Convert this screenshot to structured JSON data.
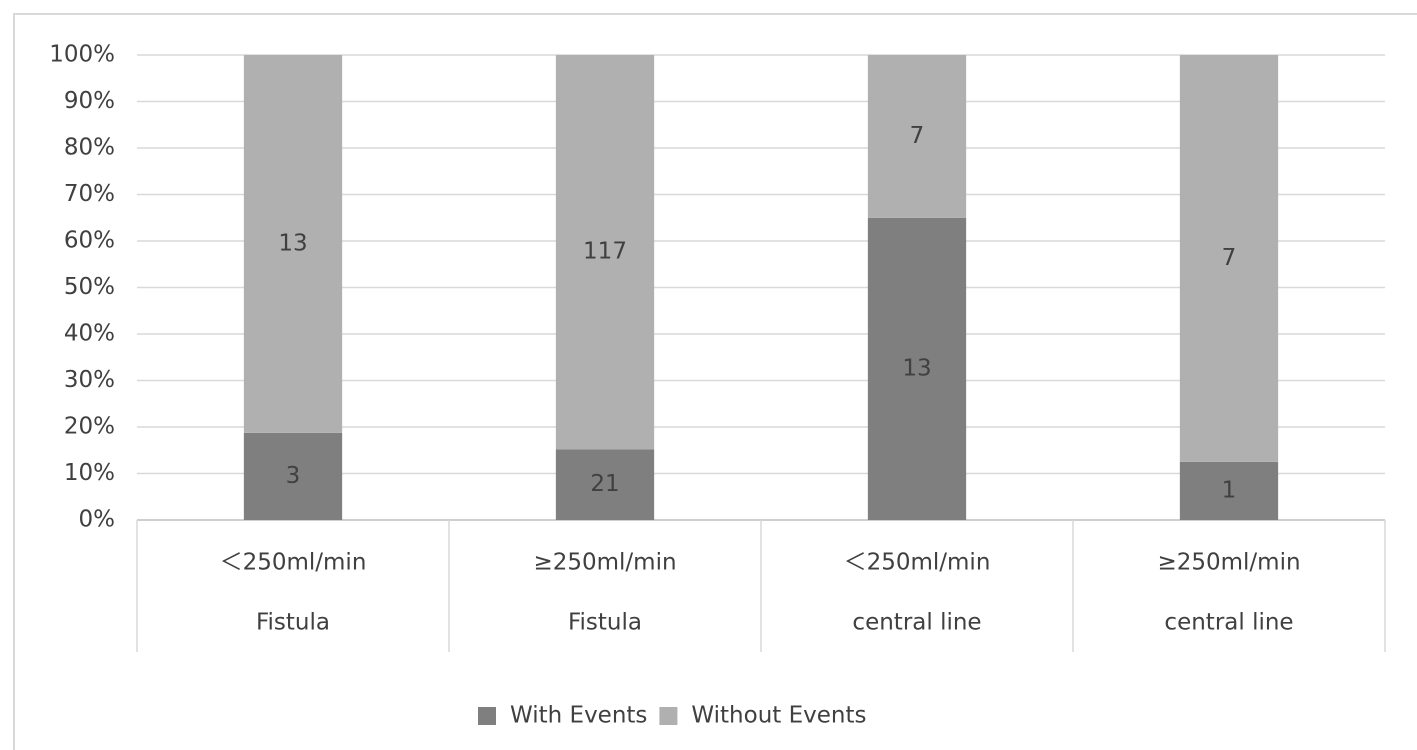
{
  "chart_data": {
    "type": "bar",
    "stacking": "percent",
    "categories": [
      "＜250ml/min",
      "≥250ml/min",
      "＜250ml/min",
      "≥250ml/min"
    ],
    "category_groups": [
      "Fistula",
      "Fistula",
      "central line",
      "central line"
    ],
    "series": [
      {
        "name": "With Events",
        "color": "#7f7f7f",
        "values": [
          3,
          21,
          13,
          1
        ]
      },
      {
        "name": "Without Events",
        "color": "#b0b0b0",
        "values": [
          13,
          117,
          7,
          7
        ]
      }
    ],
    "ylim": [
      0,
      100
    ],
    "yticks": [
      {
        "value": 0,
        "label": "0%"
      },
      {
        "value": 10,
        "label": "10%"
      },
      {
        "value": 20,
        "label": "20%"
      },
      {
        "value": 30,
        "label": "30%"
      },
      {
        "value": 40,
        "label": "40%"
      },
      {
        "value": 50,
        "label": "50%"
      },
      {
        "value": 60,
        "label": "60%"
      },
      {
        "value": 70,
        "label": "70%"
      },
      {
        "value": 80,
        "label": "80%"
      },
      {
        "value": 90,
        "label": "90%"
      },
      {
        "value": 100,
        "label": "100%"
      }
    ],
    "grid": true,
    "legend": "bottom"
  }
}
